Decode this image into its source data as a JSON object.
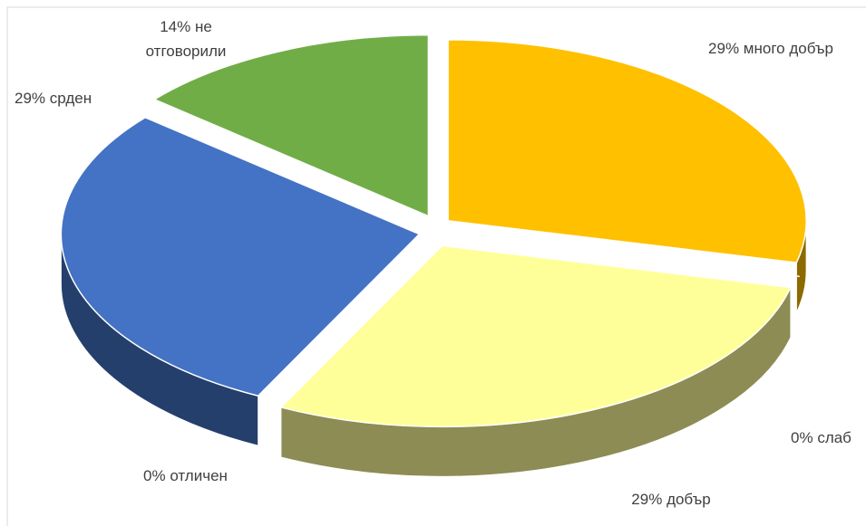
{
  "chart_data": {
    "type": "pie",
    "categories": [
      "много добър",
      "слаб",
      "добър",
      "отличен",
      "срден",
      "не отговорили"
    ],
    "values": [
      29,
      0,
      29,
      0,
      29,
      14
    ],
    "value_labels": [
      "29%",
      "0%",
      "29%",
      "0%",
      "29%",
      "14%"
    ],
    "colors": [
      "#ffc000",
      "#843c0c",
      "#ffff99",
      "#bf9000",
      "#4472c4",
      "#70ad47"
    ]
  }
}
